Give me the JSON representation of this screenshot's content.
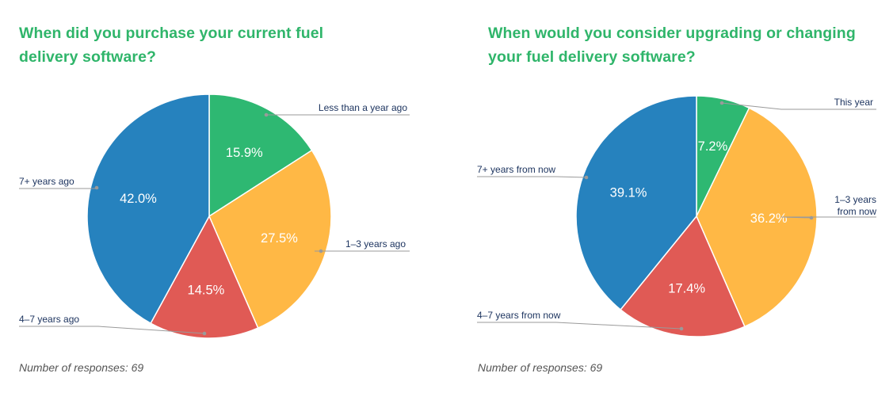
{
  "chart_data": [
    {
      "type": "pie",
      "title": "When did you purchase your current fuel delivery software?",
      "footnote": "Number of responses: 69",
      "labels": [
        "Less than a year ago",
        "1–3 years ago",
        "4–7 years ago",
        "7+ years ago"
      ],
      "values": [
        15.9,
        27.5,
        14.5,
        42.0
      ],
      "value_labels": [
        "15.9%",
        "27.5%",
        "14.5%",
        "42.0%"
      ],
      "colors": [
        "#2eb872",
        "#ffb845",
        "#e05a55",
        "#2682be"
      ]
    },
    {
      "type": "pie",
      "title": "When would you consider upgrading or changing your fuel delivery software?",
      "footnote": "Number of responses: 69",
      "labels": [
        "This year",
        "1–3 years from now",
        "4–7 years from now",
        "7+ years from now"
      ],
      "values": [
        7.2,
        36.2,
        17.4,
        39.1
      ],
      "value_labels": [
        "7.2%",
        "36.2%",
        "17.4%",
        "39.1%"
      ],
      "colors": [
        "#2eb872",
        "#ffb845",
        "#e05a55",
        "#2682be"
      ]
    }
  ]
}
